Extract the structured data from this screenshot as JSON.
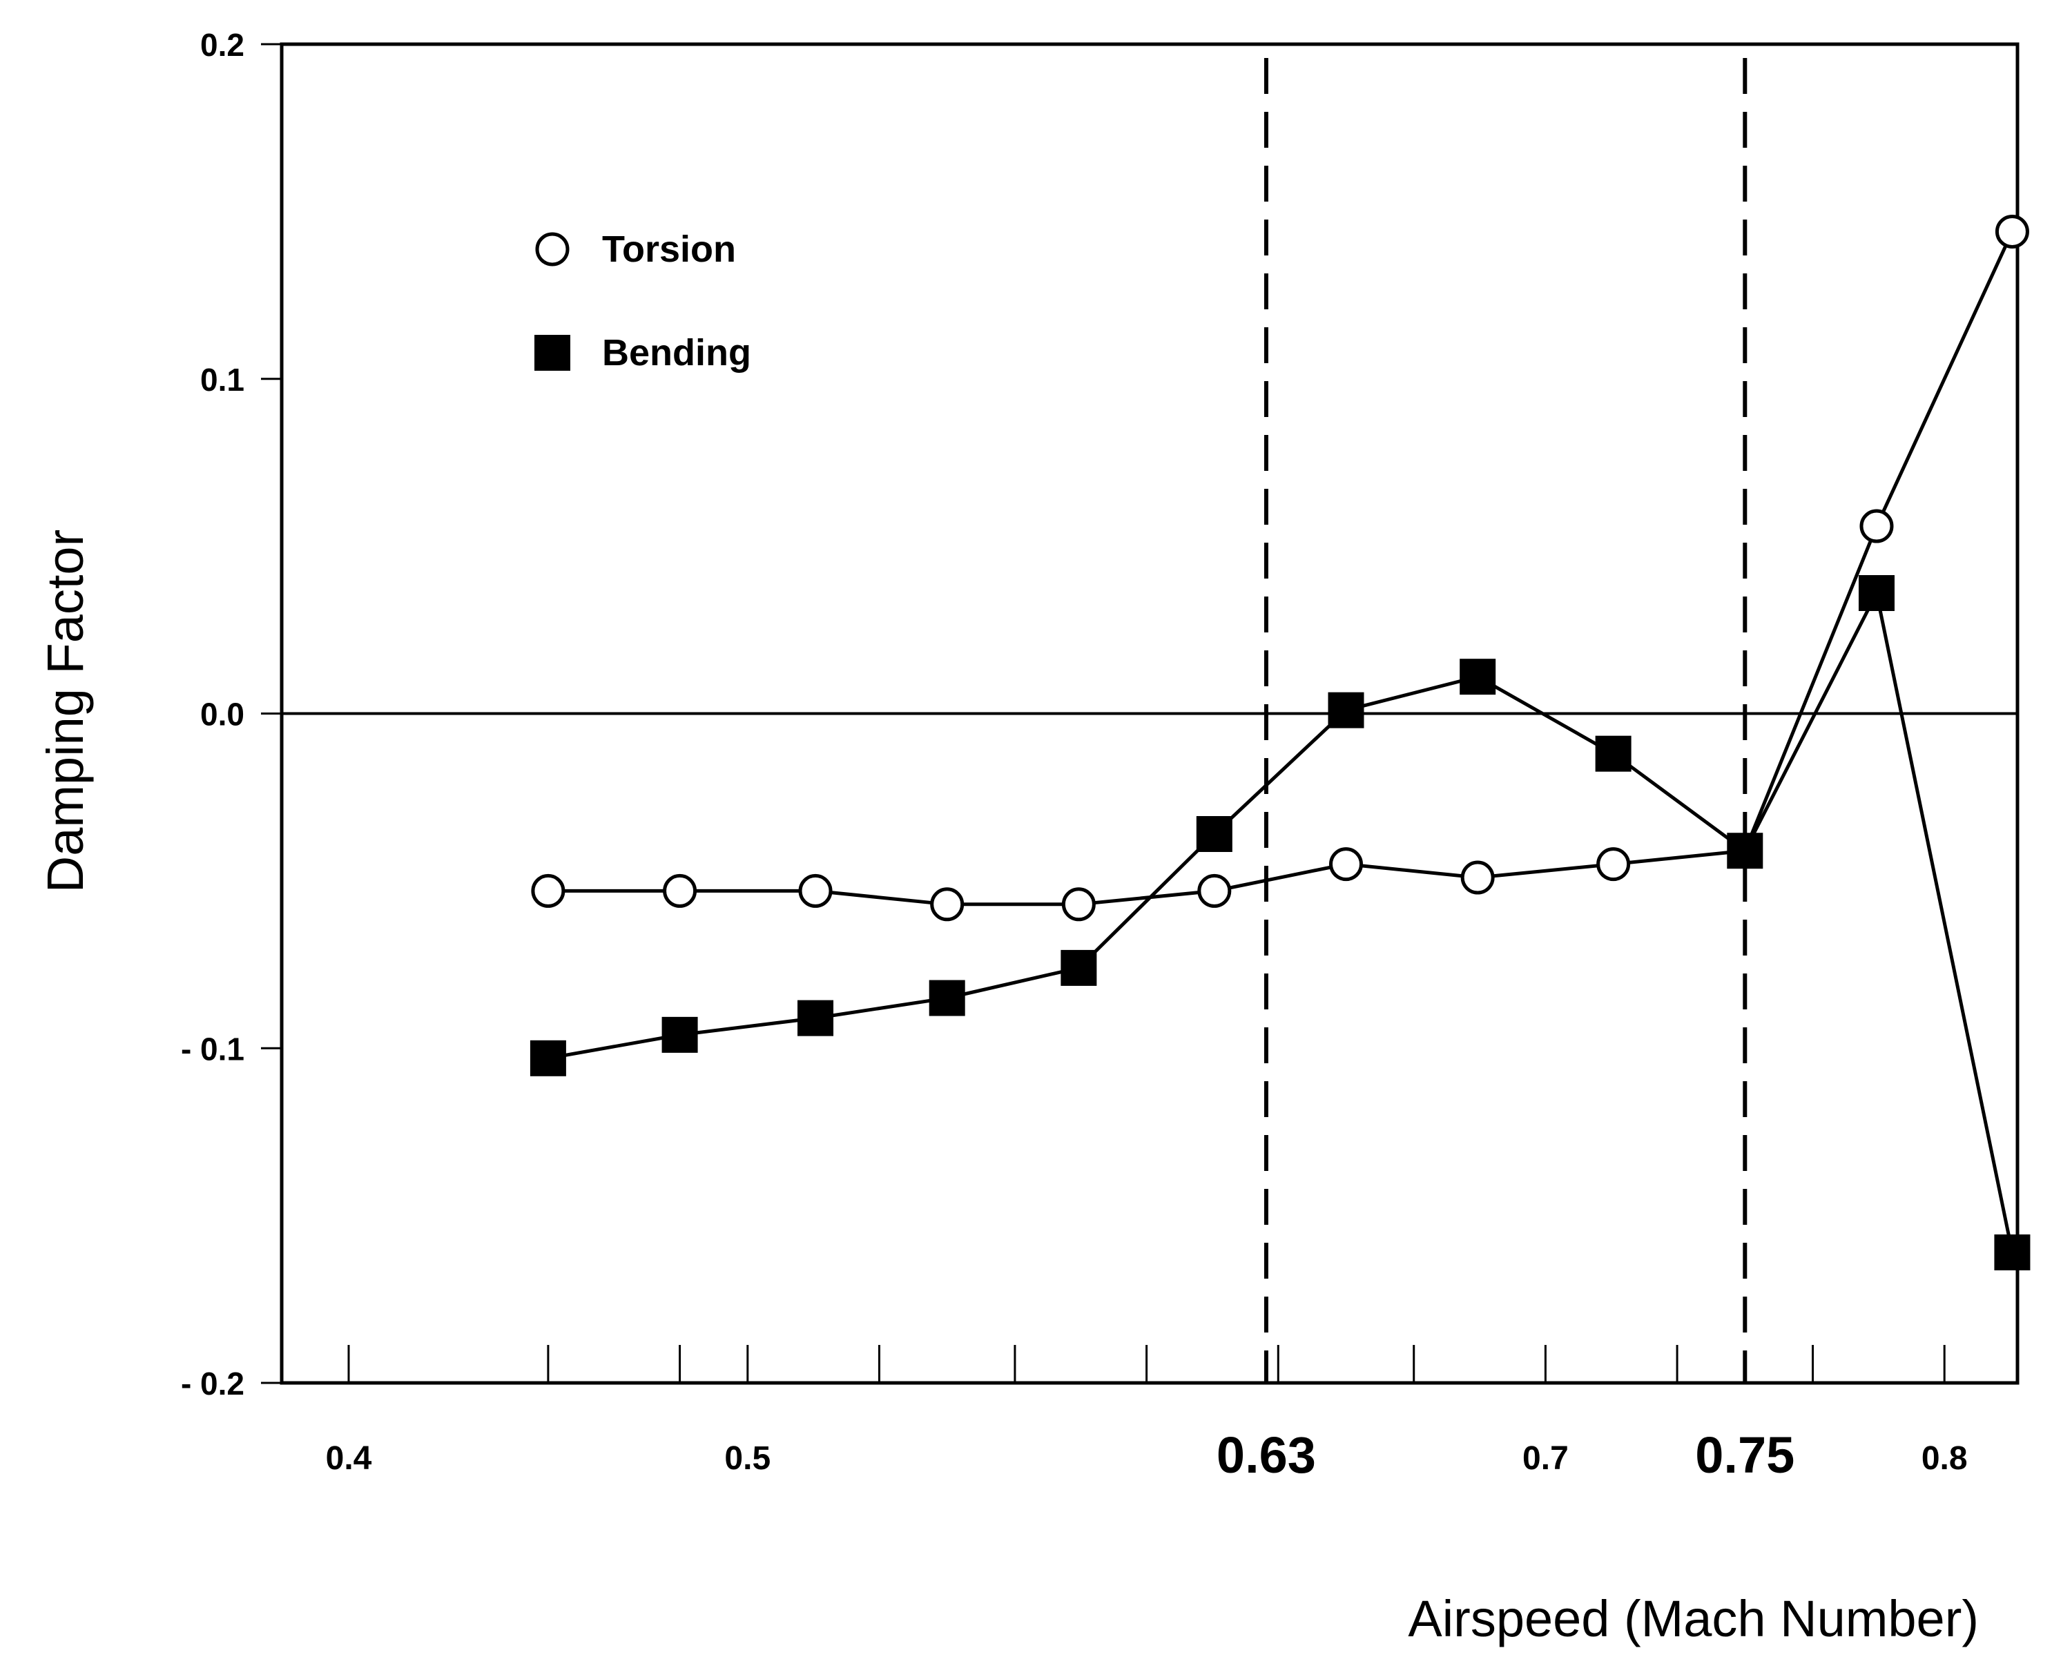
{
  "chart_data": {
    "type": "line",
    "xlabel": "Airspeed (Mach Number)",
    "ylabel": "Damping Factor",
    "xlim": [
      0.38,
      0.81
    ],
    "ylim": [
      -0.2,
      0.2
    ],
    "x_tick_values": [
      0.4,
      0.5,
      0.63,
      0.7,
      0.75,
      0.8
    ],
    "x_tick_labels": [
      "0.4",
      "0.5",
      "0.63",
      "0.7",
      "0.75",
      "0.8"
    ],
    "x_tick_emphasis": [
      "0.63",
      "0.75"
    ],
    "x_minor_ticks": [
      0.4,
      0.45,
      0.483,
      0.5,
      0.533,
      0.567,
      0.6,
      0.633,
      0.667,
      0.7,
      0.733,
      0.767,
      0.8
    ],
    "y_ticks": [
      0.2,
      0.1,
      0.0,
      -0.1,
      -0.2
    ],
    "y_tick_labels": [
      "0.2",
      "0.1",
      "0.0",
      "- 0.1",
      "- 0.2"
    ],
    "reference_lines": {
      "horizontal_y": 0.0,
      "vertical_dashed_x": [
        0.63,
        0.75
      ]
    },
    "legend": {
      "placement": "top-left"
    },
    "series": [
      {
        "name": "Torsion",
        "marker": "open-circle",
        "x": [
          0.45,
          0.483,
          0.517,
          0.55,
          0.583,
          0.617,
          0.65,
          0.683,
          0.717,
          0.75,
          0.783,
          0.817
        ],
        "values": [
          -0.053,
          -0.053,
          -0.053,
          -0.057,
          -0.057,
          -0.053,
          -0.045,
          -0.049,
          -0.045,
          -0.041,
          0.056,
          0.144
        ]
      },
      {
        "name": "Bending",
        "marker": "filled-square",
        "x": [
          0.45,
          0.483,
          0.517,
          0.55,
          0.583,
          0.617,
          0.65,
          0.683,
          0.717,
          0.75,
          0.783,
          0.817
        ],
        "values": [
          -0.103,
          -0.096,
          -0.091,
          -0.085,
          -0.076,
          -0.036,
          0.001,
          0.011,
          -0.012,
          -0.041,
          0.036,
          -0.161
        ]
      }
    ]
  }
}
